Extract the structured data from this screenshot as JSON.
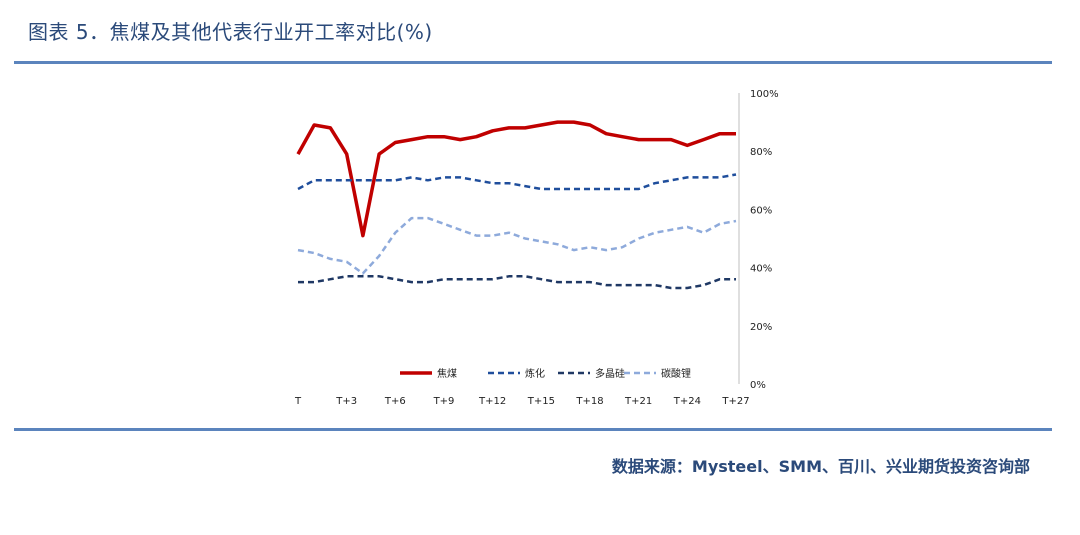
{
  "figure": {
    "title": "图表 5．焦煤及其他代表行业开工率对比(%)",
    "source": "数据来源：Mysteel、SMM、百川、兴业期货投资咨询部"
  },
  "chart_data": {
    "type": "line",
    "title": "",
    "xlabel": "",
    "ylabel": "",
    "y_axis_side": "right",
    "ylim": [
      0,
      100
    ],
    "y_ticks": [
      0,
      20,
      40,
      60,
      80,
      100
    ],
    "y_tick_labels": [
      "0%",
      "20%",
      "40%",
      "60%",
      "80%",
      "100%"
    ],
    "x": [
      "T",
      "T+1",
      "T+2",
      "T+3",
      "T+4",
      "T+5",
      "T+6",
      "T+7",
      "T+8",
      "T+9",
      "T+10",
      "T+11",
      "T+12",
      "T+13",
      "T+14",
      "T+15",
      "T+16",
      "T+17",
      "T+18",
      "T+19",
      "T+20",
      "T+21",
      "T+22",
      "T+23",
      "T+24",
      "T+25",
      "T+26",
      "T+27"
    ],
    "x_tick_labels": [
      "T",
      "",
      "",
      "T+3",
      "",
      "",
      "T+6",
      "",
      "",
      "T+9",
      "",
      "",
      "T+12",
      "",
      "",
      "T+15",
      "",
      "",
      "T+18",
      "",
      "",
      "T+21",
      "",
      "",
      "T+24",
      "",
      "",
      "T+27"
    ],
    "grid": false,
    "legend_position": "bottom-inside",
    "series": [
      {
        "name": "焦煤",
        "color": "#c00000",
        "style": "solid",
        "width": 3.5,
        "values": [
          79,
          89,
          88,
          79,
          51,
          79,
          83,
          84,
          85,
          85,
          84,
          85,
          87,
          88,
          88,
          89,
          90,
          90,
          89,
          86,
          85,
          84,
          84,
          84,
          82,
          84,
          86,
          86
        ]
      },
      {
        "name": "炼化",
        "color": "#1f4e9c",
        "style": "dashed",
        "width": 2.5,
        "values": [
          67,
          70,
          70,
          70,
          70,
          70,
          70,
          71,
          70,
          71,
          71,
          70,
          69,
          69,
          68,
          67,
          67,
          67,
          67,
          67,
          67,
          67,
          69,
          70,
          71,
          71,
          71,
          72
        ]
      },
      {
        "name": "多晶硅",
        "color": "#1f3864",
        "style": "dashed",
        "width": 2.5,
        "values": [
          35,
          35,
          36,
          37,
          37,
          37,
          36,
          35,
          35,
          36,
          36,
          36,
          36,
          37,
          37,
          36,
          35,
          35,
          35,
          34,
          34,
          34,
          34,
          33,
          33,
          34,
          36,
          36
        ]
      },
      {
        "name": "碳酸锂",
        "color": "#8eaadb",
        "style": "dashed",
        "width": 2.5,
        "values": [
          46,
          45,
          43,
          42,
          38,
          44,
          52,
          57,
          57,
          55,
          53,
          51,
          51,
          52,
          50,
          49,
          48,
          46,
          47,
          46,
          47,
          50,
          52,
          53,
          54,
          52,
          55,
          56
        ]
      }
    ]
  }
}
